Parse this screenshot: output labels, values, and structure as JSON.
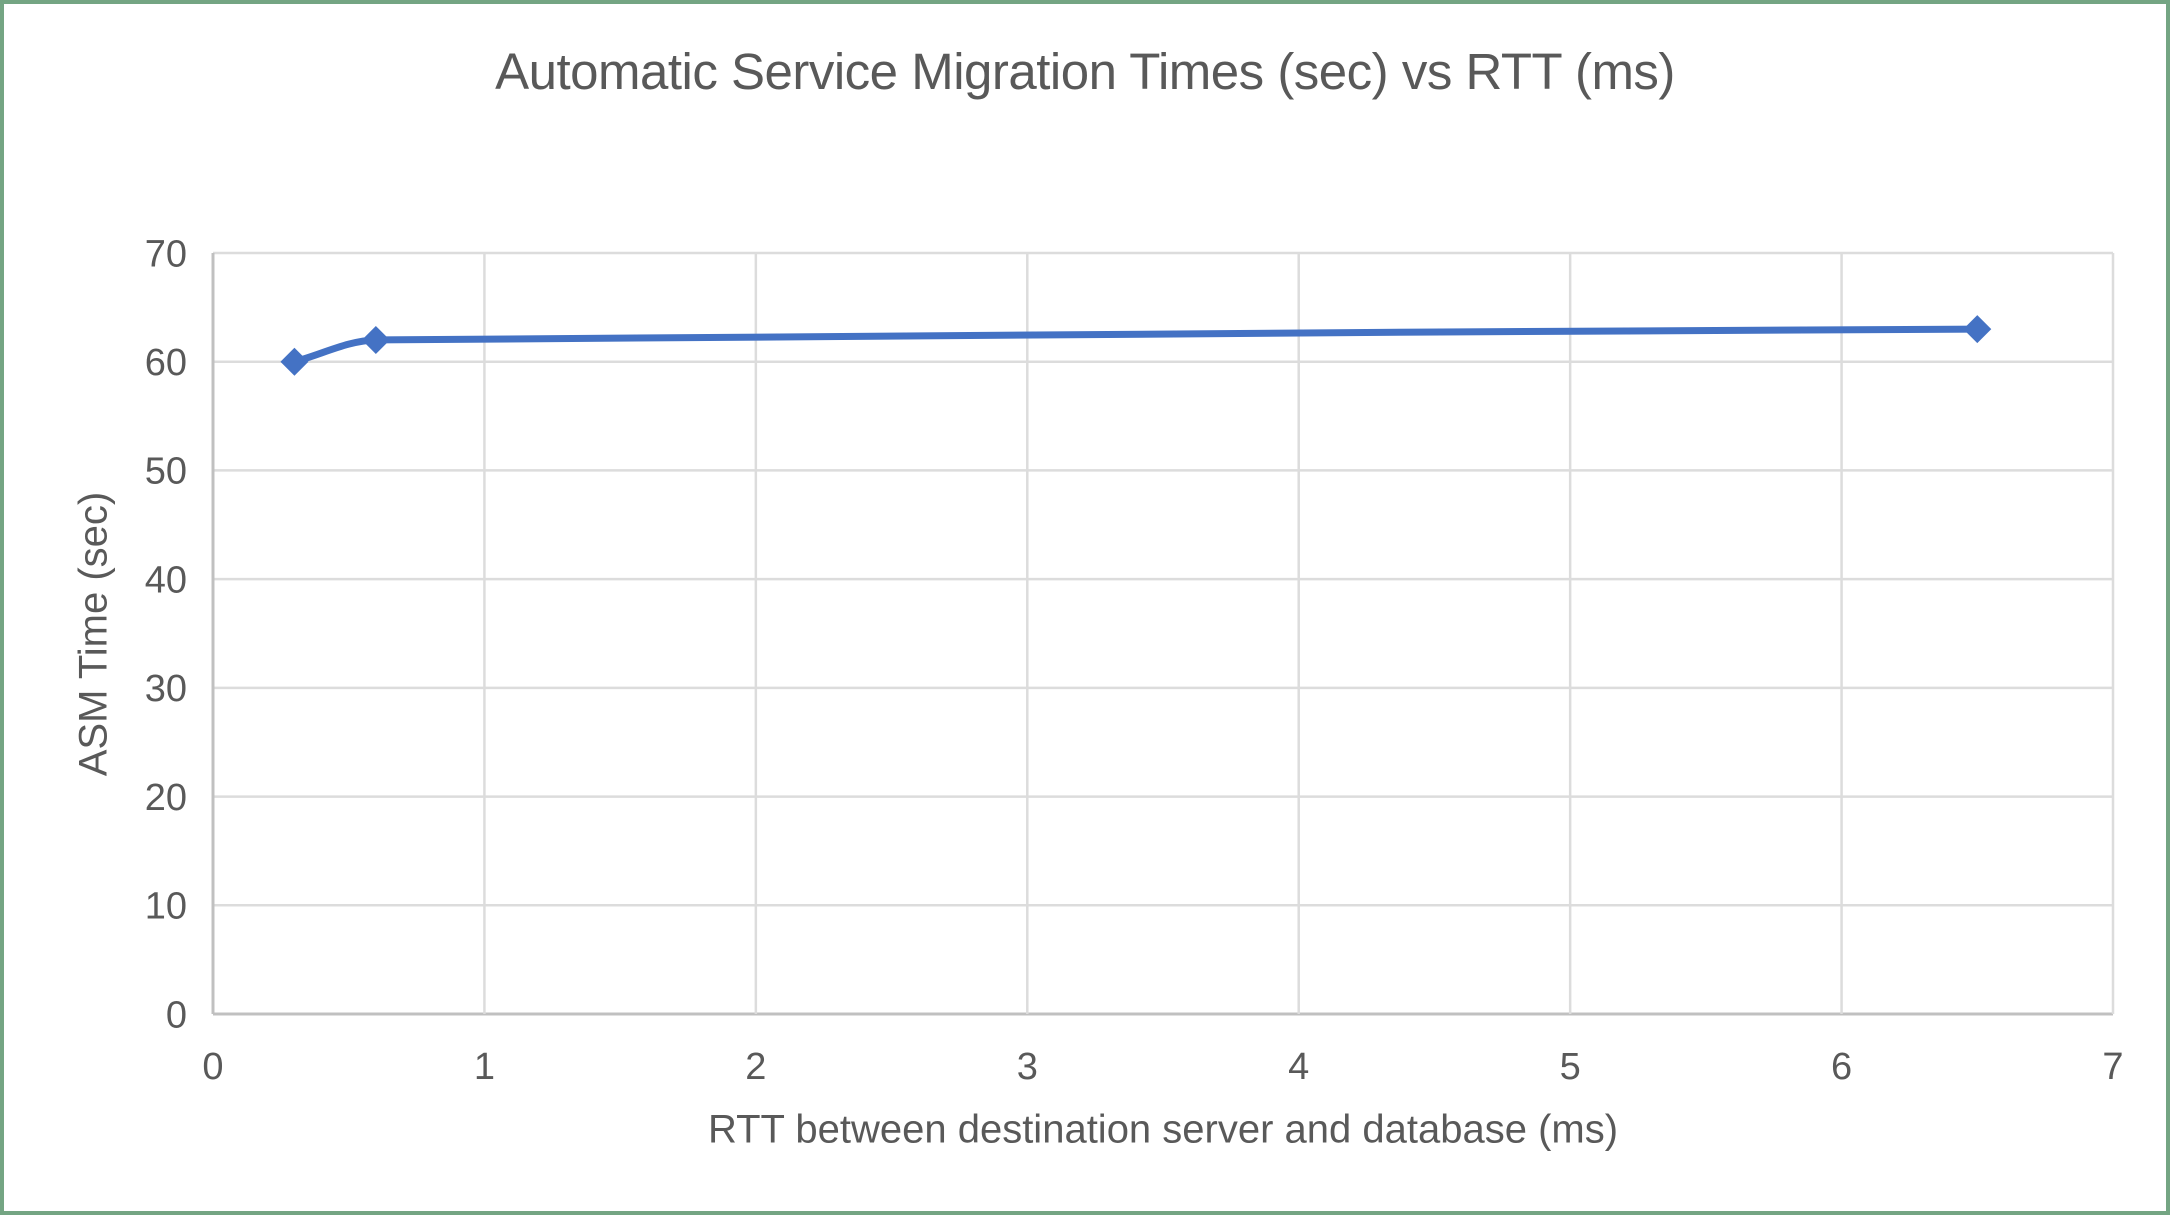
{
  "window": {
    "border_color": "#74A583",
    "background_color": "#FFFFFF",
    "text_color": "#595959"
  },
  "chart_data": {
    "type": "line",
    "title": "Automatic Service Migration Times (sec) vs RTT (ms)",
    "xlabel": "RTT between destination server and database (ms)",
    "ylabel": "ASM Time (sec)",
    "x": [
      0.3,
      0.6,
      6.5
    ],
    "y": [
      60,
      62,
      63
    ],
    "xlim": [
      0,
      7
    ],
    "ylim": [
      0,
      70
    ],
    "x_ticks": [
      0,
      1,
      2,
      3,
      4,
      5,
      6,
      7
    ],
    "y_ticks": [
      0,
      10,
      20,
      30,
      40,
      50,
      60,
      70
    ],
    "grid": true,
    "legend": false,
    "smooth": true,
    "marker": "diamond",
    "line_color": "#4472C4",
    "gridline_color": "#DCDCDC",
    "axis_line_color": "#C0C0C0",
    "tick_text_color": "#595959"
  }
}
